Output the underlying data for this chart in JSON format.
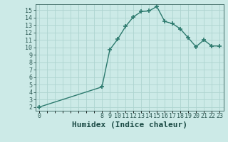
{
  "x": [
    0,
    8,
    9,
    10,
    11,
    12,
    13,
    14,
    15,
    16,
    17,
    18,
    19,
    20,
    21,
    22,
    23
  ],
  "y": [
    2.0,
    4.7,
    9.7,
    11.1,
    12.8,
    14.1,
    14.8,
    14.9,
    15.5,
    13.5,
    13.2,
    12.5,
    11.3,
    10.1,
    11.0,
    10.2,
    10.2
  ],
  "line_color": "#2d7a6e",
  "marker": "+",
  "marker_size": 4,
  "marker_linewidth": 1.2,
  "bg_color": "#cceae7",
  "grid_color": "#aed4d0",
  "xlabel": "Humidex (Indice chaleur)",
  "xlabel_fontsize": 8,
  "ylabel_ticks": [
    2,
    3,
    4,
    5,
    6,
    7,
    8,
    9,
    10,
    11,
    12,
    13,
    14,
    15
  ],
  "ylim": [
    1.5,
    15.8
  ],
  "xlim": [
    -0.5,
    23.5
  ],
  "tick_color": "#2d5a54",
  "font_color": "#1a4a44",
  "line_width": 1.0
}
